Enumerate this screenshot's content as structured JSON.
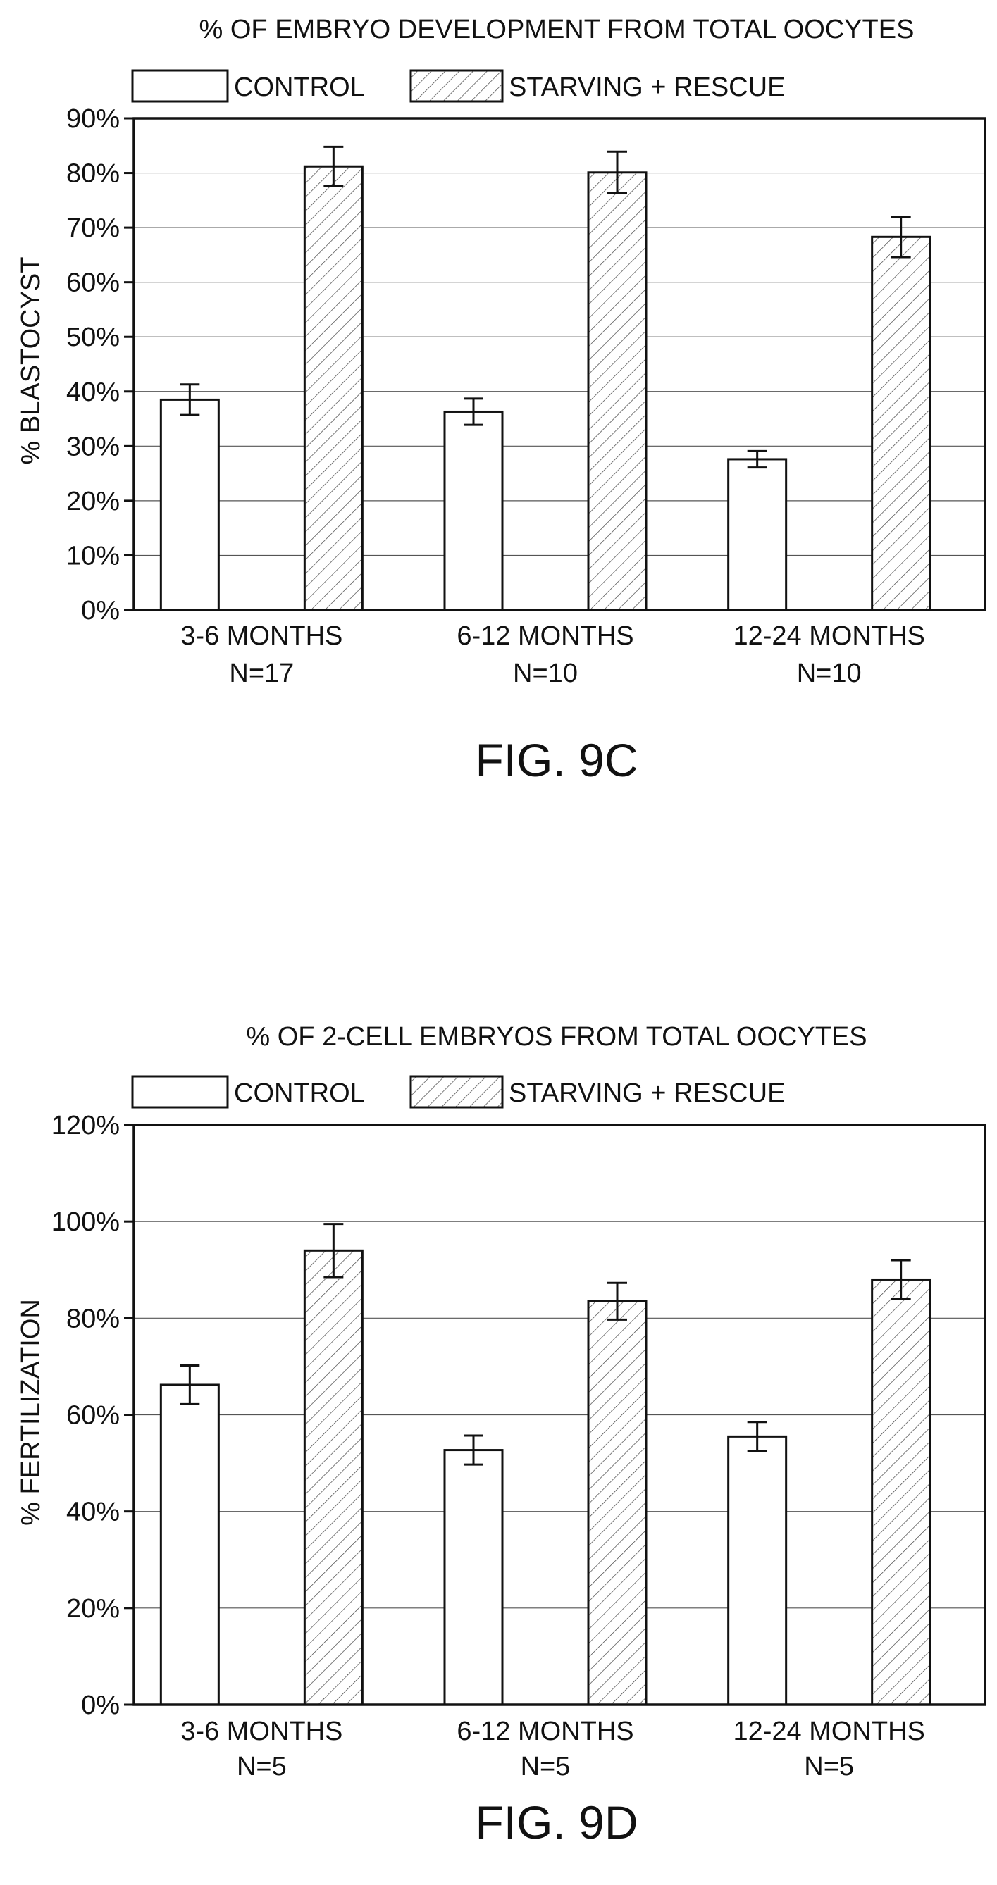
{
  "figures": [
    {
      "caption": "FIG. 9C",
      "chart_data": {
        "type": "bar",
        "title": "% OF EMBRYO DEVELOPMENT FROM TOTAL OOCYTES",
        "ylabel": "% BLASTOCYST",
        "xlabel": "",
        "categories": [
          "3-6 MONTHS",
          "6-12 MONTHS",
          "12-24 MONTHS"
        ],
        "category_sublabels": [
          "N=17",
          "N=10",
          "N=10"
        ],
        "ylim": [
          0,
          90
        ],
        "yticks": [
          0,
          10,
          20,
          30,
          40,
          50,
          60,
          70,
          80,
          90
        ],
        "ytick_labels": [
          "0%",
          "10%",
          "20%",
          "30%",
          "40%",
          "50%",
          "60%",
          "70%",
          "80%",
          "90%"
        ],
        "grid": true,
        "legend_position": "top",
        "series": [
          {
            "name": "CONTROL",
            "pattern": "solid",
            "values": [
              38.5,
              36.3,
              27.6
            ],
            "errors": [
              2.8,
              2.4,
              1.5
            ]
          },
          {
            "name": "STARVING + RESCUE",
            "pattern": "hatch",
            "values": [
              81.2,
              80.1,
              68.3
            ],
            "errors": [
              3.6,
              3.8,
              3.7
            ]
          }
        ]
      }
    },
    {
      "caption": "FIG. 9D",
      "chart_data": {
        "type": "bar",
        "title": "% OF 2-CELL EMBRYOS FROM TOTAL OOCYTES",
        "ylabel": "% FERTILIZATION",
        "xlabel": "",
        "categories": [
          "3-6 MONTHS",
          "6-12 MONTHS",
          "12-24 MONTHS"
        ],
        "category_sublabels": [
          "N=5",
          "N=5",
          "N=5"
        ],
        "ylim": [
          0,
          120
        ],
        "yticks": [
          0,
          20,
          40,
          60,
          80,
          100,
          120
        ],
        "ytick_labels": [
          "0%",
          "20%",
          "40%",
          "60%",
          "80%",
          "100%",
          "120%"
        ],
        "grid": true,
        "legend_position": "top",
        "series": [
          {
            "name": "CONTROL",
            "pattern": "solid",
            "values": [
              66.2,
              52.7,
              55.5
            ],
            "errors": [
              4.0,
              3.0,
              3.0
            ]
          },
          {
            "name": "STARVING + RESCUE",
            "pattern": "hatch",
            "values": [
              94.0,
              83.5,
              88.0
            ],
            "errors": [
              5.5,
              3.8,
              4.0
            ]
          }
        ]
      }
    }
  ],
  "colors": {
    "stroke": "#111111",
    "bar_fill": "#ffffff",
    "hatch_line": "#444444",
    "grid": "#555555"
  }
}
